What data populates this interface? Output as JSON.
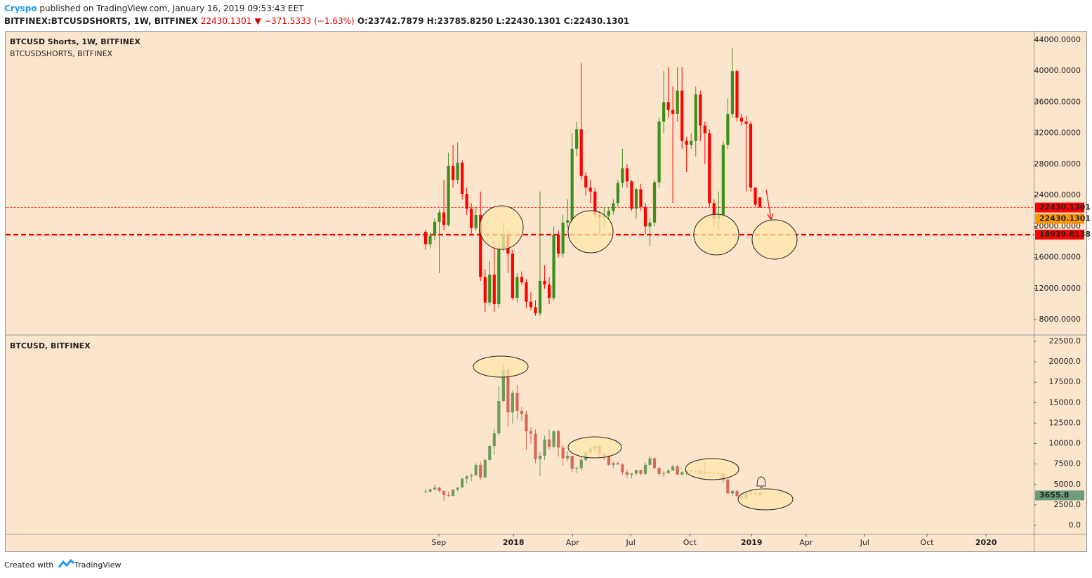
{
  "header": {
    "author": "Cryspo",
    "published": "published on TradingView.com, January 16, 2019 09:53:43 EET",
    "symbol": "BITFINEX:BTCUSDSHORTS, 1W, BITFINEX",
    "last": "22430.1301",
    "change": "−371.5333 (−1.63%)",
    "open": "O:23742.7879",
    "high": "H:23785.8250",
    "low": "L:22430.1301",
    "close": "C:22430.1301"
  },
  "chart_data": [
    {
      "type": "candlestick",
      "title": "BTCUSD Shorts, 1W, BITFINEX",
      "subtitle": "BTCUSDSHORTS, BITFINEX",
      "up_color": "#3d8f1c",
      "down_color": "#ff0000",
      "xlim": [
        -91.7,
        132.8
      ],
      "ylim": [
        6115,
        45085
      ],
      "yticks": [
        {
          "value": 8000,
          "label": "8000.0000"
        },
        {
          "value": 12000,
          "label": "12000.0000"
        },
        {
          "value": 16000,
          "label": "16000.0000"
        },
        {
          "value": 20000,
          "label": "20000.0000"
        },
        {
          "value": 24000,
          "label": "24000.0000"
        },
        {
          "value": 28000,
          "label": "28000.0000"
        },
        {
          "value": 32000,
          "label": "32000.0000"
        },
        {
          "value": 36000,
          "label": "36000.0000"
        },
        {
          "value": 40000,
          "label": "40000.0000"
        },
        {
          "value": 44000,
          "label": "44000.0000"
        }
      ],
      "price_lines": [
        {
          "value": 22430.1301,
          "color": "#ff0000",
          "style": "dotted"
        },
        {
          "value": 18939.8138,
          "color": "#ff0000",
          "style": "dashed"
        }
      ],
      "price_tags": [
        {
          "value": 22430.1301,
          "color": "#ff0000"
        },
        {
          "value": 22430.1301,
          "color": "#ff9800"
        },
        {
          "value": 18939.8138,
          "color": "#ff0000"
        }
      ],
      "candles": [
        [
          19300,
          19600,
          17000,
          17700
        ],
        [
          17700,
          19200,
          17200,
          18800
        ],
        [
          18800,
          21000,
          18200,
          20600
        ],
        [
          20600,
          22200,
          14000,
          21800
        ],
        [
          21800,
          26000,
          19500,
          20200
        ],
        [
          20200,
          29500,
          20000,
          27800
        ],
        [
          27800,
          30500,
          25000,
          26000
        ],
        [
          26000,
          30800,
          25500,
          28200
        ],
        [
          28200,
          28500,
          23500,
          24200
        ],
        [
          24200,
          25000,
          21500,
          22300
        ],
        [
          22300,
          23000,
          19000,
          19800
        ],
        [
          19800,
          22500,
          19500,
          21500
        ],
        [
          21500,
          24500,
          13000,
          13500
        ],
        [
          13500,
          14500,
          9000,
          10200
        ],
        [
          10200,
          15500,
          9800,
          13800
        ],
        [
          13800,
          18000,
          9000,
          10000
        ],
        [
          10000,
          18000,
          9500,
          17200
        ],
        [
          17200,
          20500,
          16800,
          19000
        ],
        [
          19000,
          19500,
          14000,
          16500
        ],
        [
          16500,
          17000,
          10500,
          10800
        ],
        [
          10800,
          14000,
          10200,
          13500
        ],
        [
          13500,
          14200,
          12500,
          12800
        ],
        [
          12800,
          13200,
          9500,
          10300
        ],
        [
          10300,
          11500,
          9200,
          9600
        ],
        [
          9600,
          10500,
          8500,
          8800
        ],
        [
          8800,
          24500,
          8500,
          13000
        ],
        [
          13000,
          15000,
          12000,
          12500
        ],
        [
          12500,
          13500,
          10000,
          10800
        ],
        [
          10800,
          20000,
          10500,
          18900
        ],
        [
          18900,
          19500,
          16000,
          16500
        ],
        [
          16500,
          21500,
          16000,
          20500
        ],
        [
          20500,
          23500,
          19800,
          20800
        ],
        [
          20800,
          32000,
          20500,
          30000
        ],
        [
          30000,
          33500,
          29000,
          32500
        ],
        [
          32500,
          41000,
          26000,
          26500
        ],
        [
          26500,
          27000,
          24000,
          25000
        ],
        [
          25000,
          26000,
          23000,
          24500
        ],
        [
          24500,
          25000,
          21000,
          21500
        ],
        [
          21500,
          22000,
          19000,
          21200
        ],
        [
          21200,
          22500,
          20000,
          21400
        ],
        [
          21400,
          22500,
          21000,
          22000
        ],
        [
          22000,
          23500,
          21500,
          23000
        ],
        [
          23000,
          26000,
          22500,
          25600
        ],
        [
          25600,
          30000,
          25000,
          27500
        ],
        [
          27500,
          28000,
          25000,
          25800
        ],
        [
          25800,
          26000,
          22000,
          22300
        ],
        [
          22300,
          25000,
          21000,
          24800
        ],
        [
          24800,
          25500,
          22000,
          22500
        ],
        [
          22500,
          23000,
          19000,
          20000
        ],
        [
          20000,
          21000,
          17500,
          20500
        ],
        [
          20500,
          26000,
          20000,
          25700
        ],
        [
          25700,
          34000,
          25000,
          33500
        ],
        [
          33500,
          40000,
          32000,
          36000
        ],
        [
          36000,
          40500,
          34000,
          35000
        ],
        [
          35000,
          38000,
          23000,
          34500
        ],
        [
          34500,
          40500,
          33500,
          37500
        ],
        [
          37500,
          40500,
          30000,
          31000
        ],
        [
          31000,
          31500,
          27000,
          30500
        ],
        [
          30500,
          32000,
          30000,
          31000
        ],
        [
          31000,
          38000,
          29000,
          37000
        ],
        [
          37000,
          37500,
          31000,
          33000
        ],
        [
          33000,
          33500,
          28000,
          32000
        ],
        [
          32000,
          32500,
          22500,
          23000
        ],
        [
          23000,
          23500,
          20000,
          21000
        ],
        [
          21000,
          24500,
          19500,
          21500
        ],
        [
          21500,
          31000,
          21000,
          30500
        ],
        [
          30500,
          36500,
          30000,
          34500
        ],
        [
          34500,
          43000,
          34000,
          40000
        ],
        [
          40000,
          40200,
          33500,
          34000
        ],
        [
          34000,
          34500,
          33000,
          33500
        ],
        [
          33500,
          34200,
          24500,
          33200
        ],
        [
          33200,
          33500,
          24500,
          25000
        ],
        [
          25000,
          25000,
          22500,
          22801.6634
        ],
        [
          23742.7879,
          23785.825,
          22430.1301,
          22430.1301
        ]
      ]
    },
    {
      "type": "candlestick",
      "title": "BTCUSD, BITFINEX",
      "up_color": "#6b9d59",
      "down_color": "#d9685a",
      "last_color": "#6b9d7a",
      "xlim": [
        -91.7,
        132.8
      ],
      "ylim": [
        -1031,
        23187
      ],
      "xticks": [
        {
          "value": 2.9,
          "label": "Sep"
        },
        {
          "value": 19.2,
          "label": "2018"
        },
        {
          "value": 32.1,
          "label": "Apr"
        },
        {
          "value": 44.8,
          "label": "Jul"
        },
        {
          "value": 57.7,
          "label": "Oct"
        },
        {
          "value": 71.2,
          "label": "2019"
        },
        {
          "value": 83.1,
          "label": "Apr"
        },
        {
          "value": 95.9,
          "label": "Jul"
        },
        {
          "value": 109.5,
          "label": "Oct"
        },
        {
          "value": 122.4,
          "label": "2020"
        }
      ],
      "yticks": [
        {
          "value": 0,
          "label": "0.0"
        },
        {
          "value": 2500,
          "label": "2500.0"
        },
        {
          "value": 5000,
          "label": "5000.0"
        },
        {
          "value": 7500,
          "label": "7500.0"
        },
        {
          "value": 10000,
          "label": "10000.0"
        },
        {
          "value": 12500,
          "label": "12500.0"
        },
        {
          "value": 15000,
          "label": "15000.0"
        },
        {
          "value": 17500,
          "label": "17500.0"
        },
        {
          "value": 20000,
          "label": "20000.0"
        },
        {
          "value": 22500,
          "label": "22500.0"
        }
      ],
      "candles": [
        [
          4070,
          4480,
          3960,
          4130
        ],
        [
          4130,
          4480,
          3990,
          4380
        ],
        [
          4380,
          4980,
          4290,
          4600
        ],
        [
          4600,
          4700,
          3990,
          4220
        ],
        [
          4220,
          4250,
          2980,
          3700
        ],
        [
          3700,
          4120,
          3500,
          3600
        ],
        [
          3600,
          4370,
          3570,
          4370
        ],
        [
          4370,
          4640,
          4140,
          4620
        ],
        [
          4620,
          5860,
          4610,
          5700
        ],
        [
          5700,
          6200,
          5100,
          5990
        ],
        [
          5990,
          6300,
          5400,
          6140
        ],
        [
          6140,
          7600,
          6100,
          7400
        ],
        [
          7400,
          7800,
          5500,
          5860
        ],
        [
          5860,
          8200,
          5800,
          8000
        ],
        [
          8000,
          9800,
          7900,
          9700
        ],
        [
          9700,
          11800,
          8600,
          11250
        ],
        [
          11250,
          17000,
          11000,
          15200
        ],
        [
          15200,
          19800,
          15000,
          19000
        ],
        [
          19000,
          19500,
          12000,
          13800
        ],
        [
          13800,
          16500,
          12400,
          16200
        ],
        [
          16200,
          17200,
          13000,
          14000
        ],
        [
          14000,
          14500,
          12800,
          13600
        ],
        [
          13600,
          14000,
          9200,
          11500
        ],
        [
          11500,
          12000,
          10000,
          11200
        ],
        [
          11200,
          11700,
          7600,
          8100
        ],
        [
          8100,
          9000,
          6000,
          8500
        ],
        [
          8500,
          11000,
          8000,
          10500
        ],
        [
          10500,
          11700,
          9300,
          9600
        ],
        [
          9600,
          11600,
          9400,
          11500
        ],
        [
          11500,
          11700,
          8400,
          9500
        ],
        [
          9500,
          9800,
          7300,
          8200
        ],
        [
          8200,
          9100,
          7800,
          8500
        ],
        [
          8500,
          8500,
          6500,
          6900
        ],
        [
          6900,
          7200,
          6400,
          7000
        ],
        [
          7000,
          8400,
          6600,
          8000
        ],
        [
          8000,
          9000,
          7800,
          8900
        ],
        [
          8900,
          9700,
          8700,
          9400
        ],
        [
          9400,
          9900,
          9000,
          9700
        ],
        [
          9700,
          9800,
          8300,
          8700
        ],
        [
          8700,
          8900,
          7950,
          8500
        ],
        [
          8500,
          8600,
          7300,
          7400
        ],
        [
          7400,
          7800,
          7000,
          7600
        ],
        [
          7600,
          7800,
          7400,
          7450
        ],
        [
          7450,
          7600,
          6200,
          6500
        ],
        [
          6500,
          6800,
          5800,
          6200
        ],
        [
          6200,
          6400,
          5750,
          6350
        ],
        [
          6350,
          6800,
          6100,
          6750
        ],
        [
          6750,
          6800,
          6100,
          6300
        ],
        [
          6300,
          7700,
          6200,
          7400
        ],
        [
          7400,
          8500,
          7300,
          8200
        ],
        [
          8200,
          8300,
          6900,
          7000
        ],
        [
          7000,
          7200,
          6000,
          6300
        ],
        [
          6300,
          6600,
          5900,
          6400
        ],
        [
          6400,
          6900,
          6300,
          6700
        ],
        [
          6700,
          7400,
          6700,
          7200
        ],
        [
          7200,
          7400,
          6200,
          6200
        ],
        [
          6200,
          6600,
          6100,
          6500
        ],
        [
          6500,
          6800,
          6100,
          6700
        ],
        [
          6700,
          6800,
          6400,
          6600
        ],
        [
          6600,
          6700,
          6500,
          6600
        ],
        [
          6600,
          6800,
          6200,
          6300
        ],
        [
          6300,
          7800,
          6300,
          6500
        ],
        [
          6500,
          6600,
          6400,
          6400
        ],
        [
          6400,
          6500,
          6300,
          6350
        ],
        [
          6350,
          6600,
          6250,
          6300
        ],
        [
          6300,
          6400,
          5200,
          5600
        ],
        [
          5600,
          5700,
          3900,
          3900
        ],
        [
          3900,
          4400,
          3600,
          4200
        ],
        [
          4200,
          4300,
          3500,
          3550
        ],
        [
          3550,
          3700,
          3200,
          3300
        ],
        [
          3300,
          4200,
          3250,
          4000
        ],
        [
          4000,
          4200,
          3700,
          3850
        ],
        [
          3850,
          4100,
          3600,
          4000
        ],
        [
          4000,
          4100,
          3500,
          3655.8
        ]
      ]
    }
  ],
  "footer": {
    "created": "Created with",
    "brand": "TradingView"
  }
}
